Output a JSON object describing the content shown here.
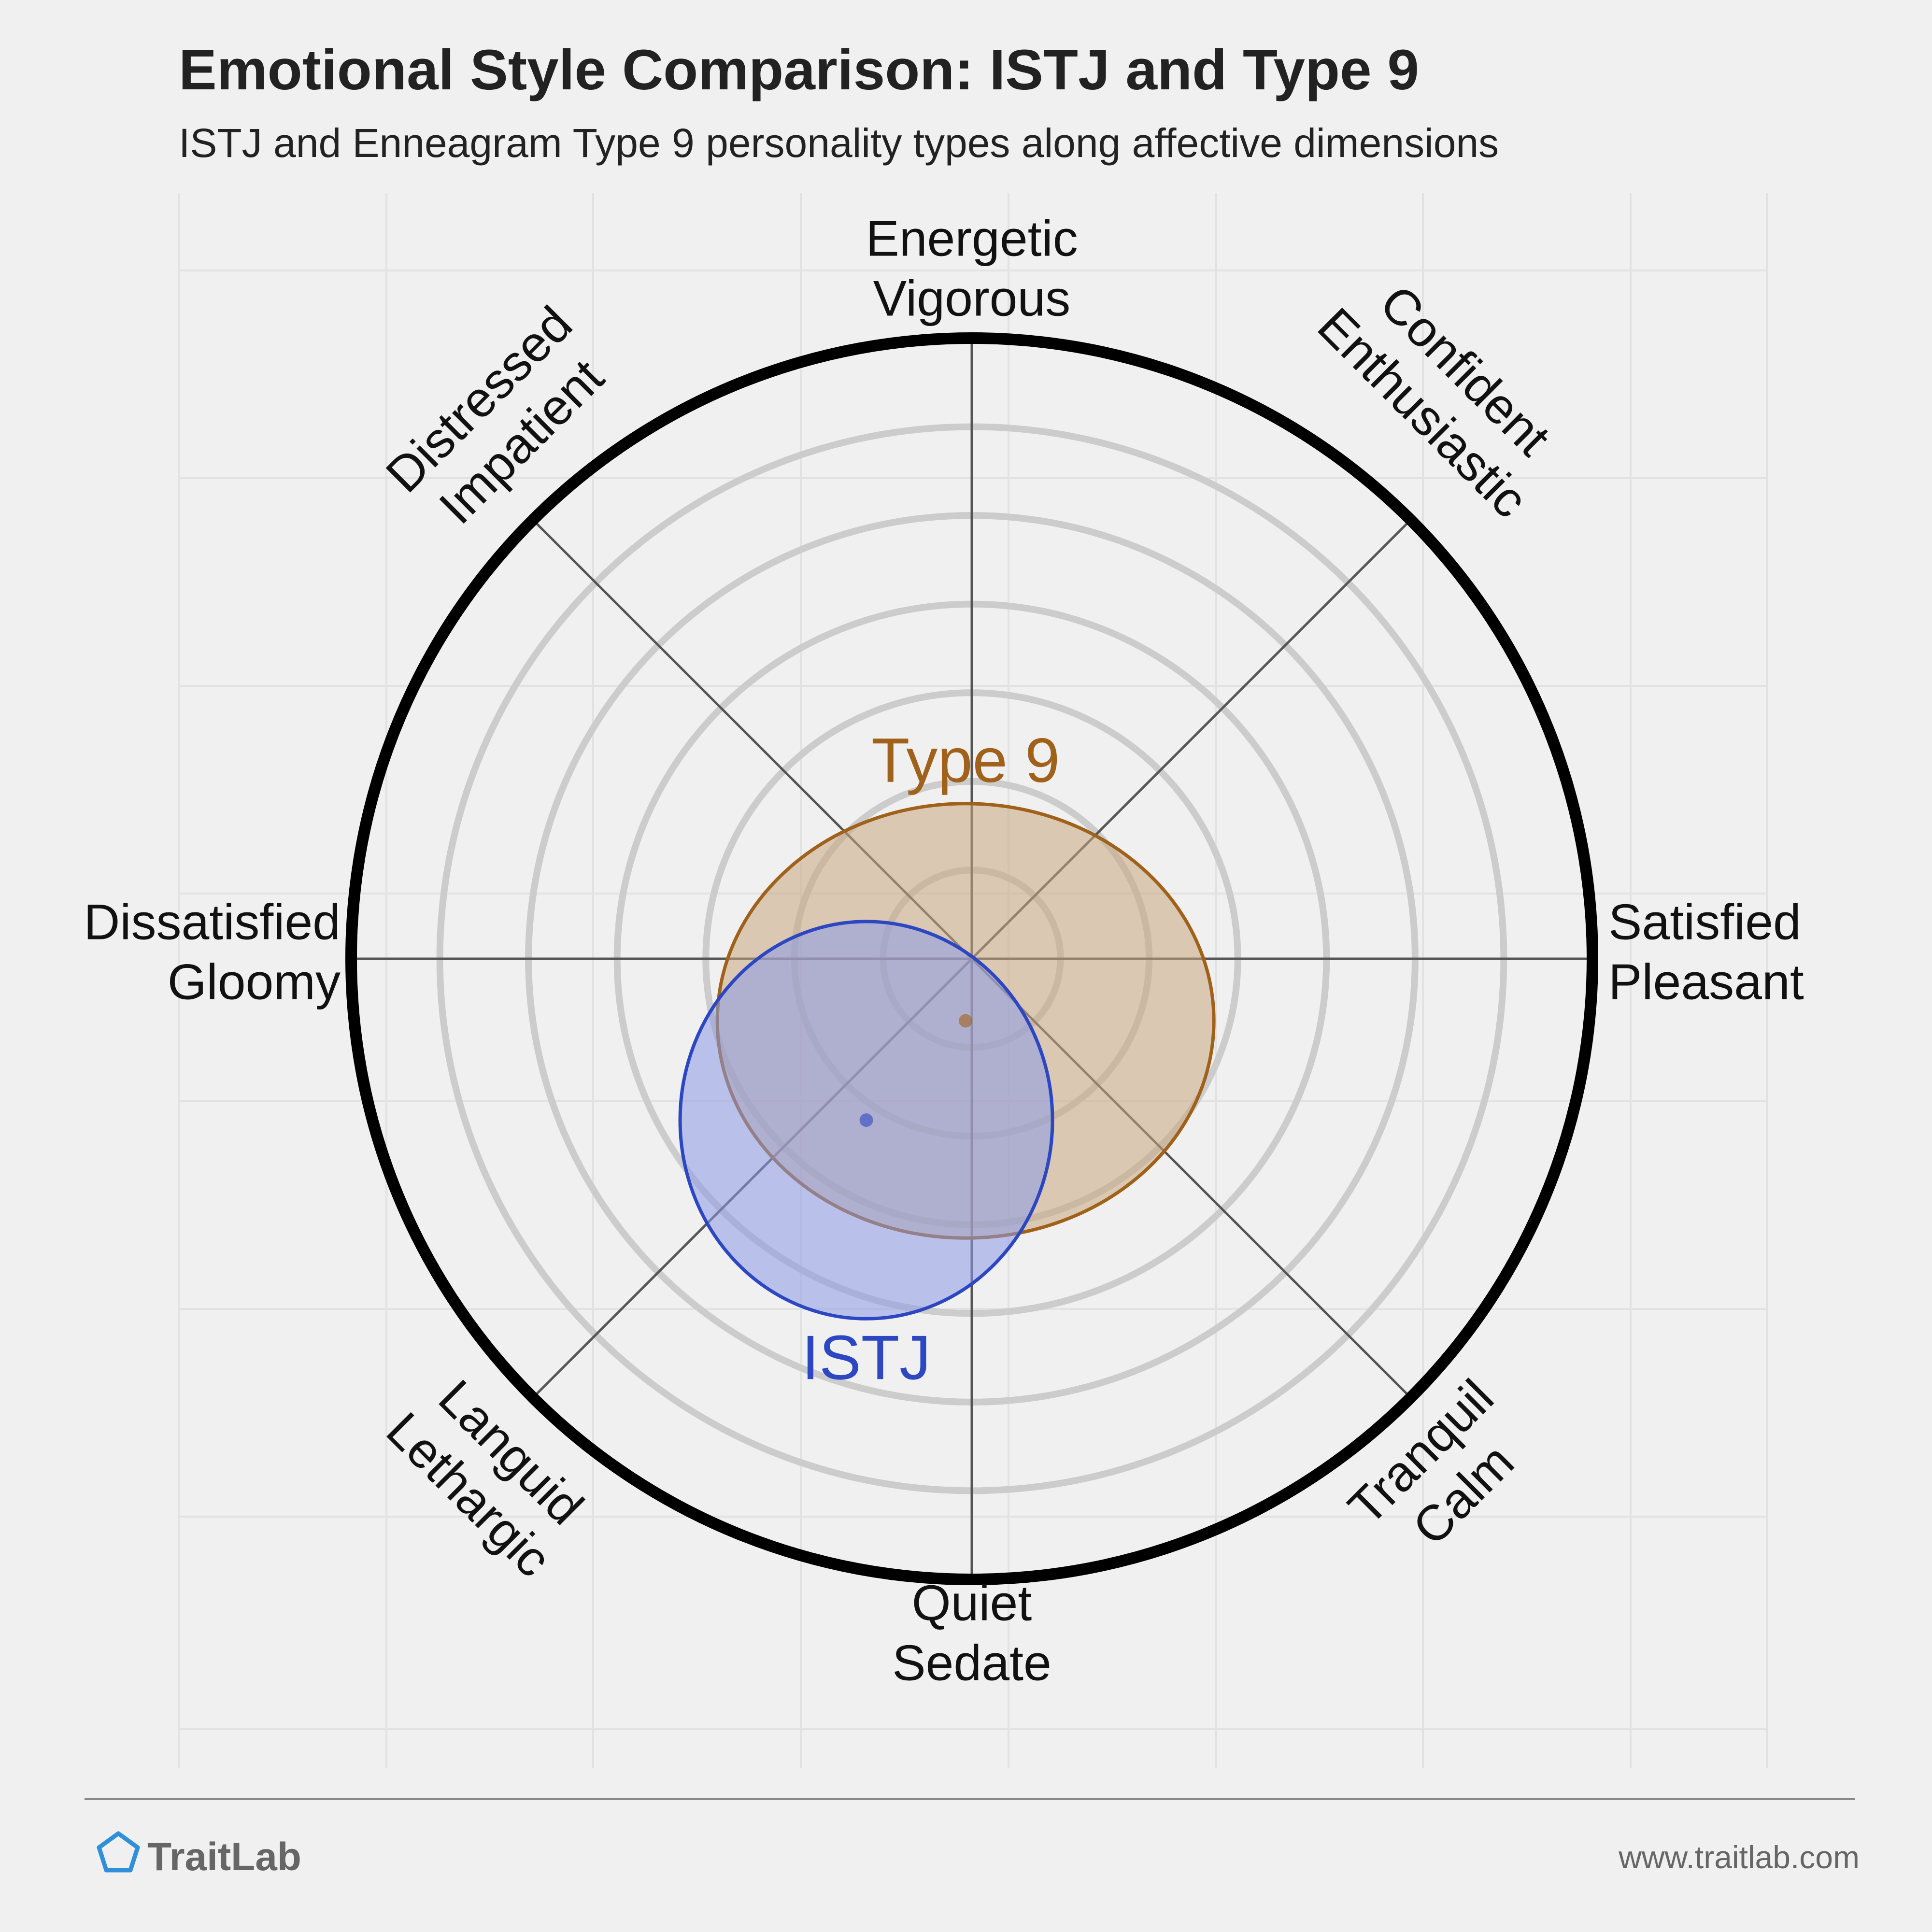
{
  "chart_data": {
    "type": "scatter",
    "title": "Emotional Style Comparison: ISTJ and Type 9",
    "subtitle": "ISTJ and Enneagram Type 9 personality types along affective dimensions",
    "axes": [
      {
        "id": "energetic",
        "lines": [
          "Energetic",
          "Vigorous"
        ]
      },
      {
        "id": "confident",
        "lines": [
          "Confident",
          "Enthusiastic"
        ]
      },
      {
        "id": "satisfied",
        "lines": [
          "Satisfied",
          "Pleasant"
        ]
      },
      {
        "id": "tranquil",
        "lines": [
          "Tranquil",
          "Calm"
        ]
      },
      {
        "id": "quiet",
        "lines": [
          "Quiet",
          "Sedate"
        ]
      },
      {
        "id": "languid",
        "lines": [
          "Languid",
          "Lethargic"
        ]
      },
      {
        "id": "dissatisfied",
        "lines": [
          "Dissatisfied",
          "Gloomy"
        ]
      },
      {
        "id": "distressed",
        "lines": [
          "Distressed",
          "Impatient"
        ]
      }
    ],
    "x_axis": {
      "negative": "Dissatisfied",
      "positive": "Satisfied",
      "range": [
        -1,
        1
      ]
    },
    "y_axis": {
      "negative": "Quiet",
      "positive": "Energetic",
      "range": [
        -1,
        1
      ]
    },
    "grid": true,
    "ring_count": 6,
    "series": [
      {
        "name": "Type 9",
        "x": -0.01,
        "y": -0.1,
        "rx": 0.4,
        "ry": 0.35,
        "color": "#a0611a",
        "fill": "#c8a882"
      },
      {
        "name": "ISTJ",
        "x": -0.17,
        "y": -0.26,
        "rx": 0.3,
        "ry": 0.32,
        "color": "#2d47c2",
        "fill": "#8c9ae6"
      }
    ]
  },
  "footer": {
    "brand": "TraitLab",
    "url": "www.traitlab.com"
  },
  "colors": {
    "background": "#f0f0f0",
    "outer_ring": "#000000",
    "grid_ring": "#cccccc",
    "axis_line": "#555555",
    "brand_icon": "#2f8fd8"
  }
}
